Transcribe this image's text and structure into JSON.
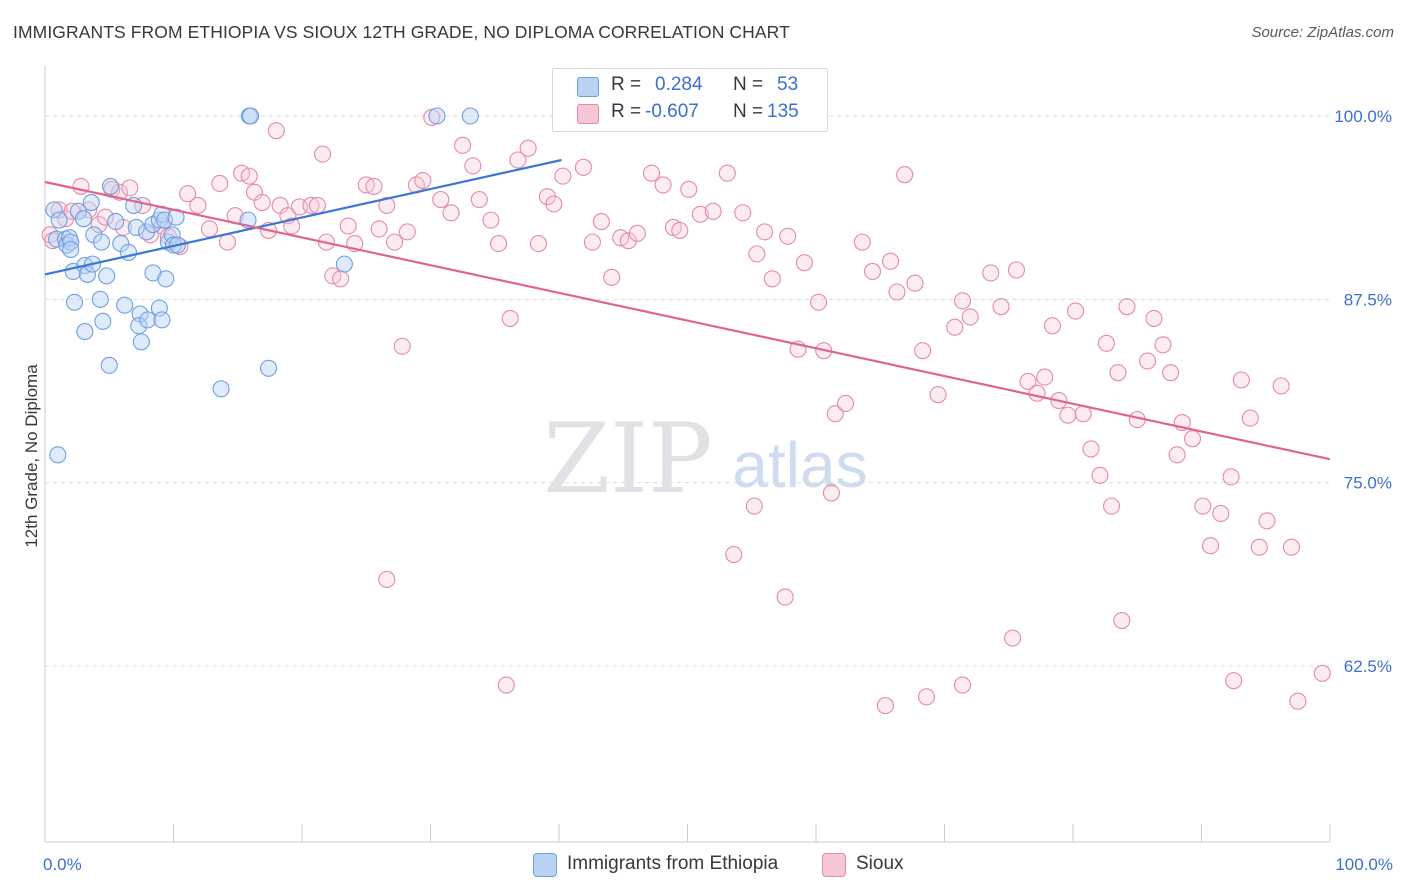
{
  "title": "IMMIGRANTS FROM ETHIOPIA VS SIOUX 12TH GRADE, NO DIPLOMA CORRELATION CHART",
  "source": "Source: ZipAtlas.com",
  "watermark": {
    "zip": "ZIP",
    "atlas": "atlas"
  },
  "legend": {
    "r_label": "R =",
    "n_label": "N =",
    "series": [
      {
        "name": "Immigrants from Ethiopia",
        "r": "0.284",
        "n": "53",
        "color": "#6f9fe0",
        "fill": "#b8d2f4"
      },
      {
        "name": "Sioux",
        "r": "-0.607",
        "n": "135",
        "color": "#e58aa8",
        "fill": "#f7c6d6"
      }
    ]
  },
  "chart_data": {
    "type": "scatter",
    "title": "IMMIGRANTS FROM ETHIOPIA VS SIOUX 12TH GRADE, NO DIPLOMA CORRELATION CHART",
    "xlabel": "",
    "ylabel": "12th Grade, No Diploma",
    "xlim": [
      0,
      100
    ],
    "ylim": [
      50.5,
      103
    ],
    "x_tick_labels": [
      "0.0%",
      "100.0%"
    ],
    "y_ticks": [
      100,
      87.5,
      75,
      62.5
    ],
    "y_tick_labels": [
      "100.0%",
      "87.5%",
      "75.0%",
      "62.5%"
    ],
    "grid": true,
    "series": [
      {
        "name": "Immigrants from Ethiopia",
        "color": "#6f9fe0",
        "trend": {
          "x": [
            0,
            40.2
          ],
          "y": [
            89.2,
            97.0
          ]
        },
        "points": [
          [
            0.7,
            93.6
          ],
          [
            0.9,
            91.6
          ],
          [
            1.1,
            92.9
          ],
          [
            1.6,
            91.6
          ],
          [
            1.7,
            91.2
          ],
          [
            1.9,
            91.7
          ],
          [
            2.0,
            91.4
          ],
          [
            2.2,
            89.4
          ],
          [
            2.6,
            93.5
          ],
          [
            3.0,
            93.0
          ],
          [
            3.1,
            89.8
          ],
          [
            3.3,
            89.2
          ],
          [
            3.6,
            94.1
          ],
          [
            3.8,
            91.9
          ],
          [
            4.4,
            91.4
          ],
          [
            4.8,
            89.1
          ],
          [
            4.3,
            87.5
          ],
          [
            5.1,
            95.2
          ],
          [
            5.5,
            92.8
          ],
          [
            5.9,
            91.3
          ],
          [
            6.5,
            90.7
          ],
          [
            6.9,
            93.9
          ],
          [
            7.1,
            92.4
          ],
          [
            7.4,
            86.5
          ],
          [
            7.9,
            92.1
          ],
          [
            8.4,
            89.3
          ],
          [
            8.4,
            92.6
          ],
          [
            8.9,
            92.9
          ],
          [
            9.1,
            93.3
          ],
          [
            9.3,
            92.9
          ],
          [
            9.4,
            88.9
          ],
          [
            9.6,
            91.4
          ],
          [
            9.9,
            91.9
          ],
          [
            10.0,
            91.2
          ],
          [
            2.3,
            87.3
          ],
          [
            3.1,
            85.3
          ],
          [
            3.7,
            89.9
          ],
          [
            4.5,
            86.0
          ],
          [
            5.0,
            83.0
          ],
          [
            6.2,
            87.1
          ],
          [
            7.3,
            85.7
          ],
          [
            7.5,
            84.6
          ],
          [
            8.0,
            86.1
          ],
          [
            8.9,
            86.9
          ],
          [
            9.1,
            86.1
          ],
          [
            10.3,
            91.2
          ],
          [
            13.7,
            81.4
          ],
          [
            15.8,
            92.9
          ],
          [
            15.9,
            100.0
          ],
          [
            16.0,
            100.0
          ],
          [
            17.4,
            82.8
          ],
          [
            23.3,
            89.9
          ],
          [
            30.5,
            100.0
          ],
          [
            33.1,
            100.0
          ],
          [
            1.0,
            76.9
          ],
          [
            10.2,
            93.1
          ],
          [
            2.0,
            90.9
          ]
        ]
      },
      {
        "name": "Sioux",
        "color": "#e58aa8",
        "trend": {
          "x": [
            0,
            100
          ],
          "y": [
            95.5,
            76.6
          ]
        },
        "points": [
          [
            0.4,
            91.9
          ],
          [
            0.6,
            91.5
          ],
          [
            1.1,
            93.6
          ],
          [
            1.6,
            93.0
          ],
          [
            2.1,
            93.5
          ],
          [
            2.8,
            95.2
          ],
          [
            3.4,
            93.6
          ],
          [
            4.2,
            92.6
          ],
          [
            4.7,
            93.1
          ],
          [
            5.2,
            95.0
          ],
          [
            5.8,
            94.8
          ],
          [
            6.1,
            92.4
          ],
          [
            6.6,
            95.1
          ],
          [
            7.6,
            93.9
          ],
          [
            8.2,
            91.9
          ],
          [
            9.1,
            92.5
          ],
          [
            9.6,
            91.8
          ],
          [
            10.5,
            91.1
          ],
          [
            11.1,
            94.7
          ],
          [
            11.9,
            93.9
          ],
          [
            12.8,
            92.3
          ],
          [
            13.6,
            95.4
          ],
          [
            14.2,
            91.4
          ],
          [
            14.8,
            93.2
          ],
          [
            15.3,
            96.1
          ],
          [
            15.9,
            95.9
          ],
          [
            16.3,
            94.8
          ],
          [
            16.9,
            94.1
          ],
          [
            17.4,
            92.2
          ],
          [
            18.0,
            99.0
          ],
          [
            18.3,
            93.9
          ],
          [
            18.9,
            93.2
          ],
          [
            19.2,
            92.5
          ],
          [
            19.8,
            93.8
          ],
          [
            20.7,
            93.9
          ],
          [
            21.2,
            93.9
          ],
          [
            21.6,
            97.4
          ],
          [
            21.9,
            91.4
          ],
          [
            22.4,
            89.1
          ],
          [
            23.0,
            88.9
          ],
          [
            23.6,
            92.5
          ],
          [
            24.1,
            91.3
          ],
          [
            25.0,
            95.3
          ],
          [
            25.6,
            95.2
          ],
          [
            26.0,
            92.3
          ],
          [
            26.6,
            93.9
          ],
          [
            27.2,
            91.4
          ],
          [
            27.8,
            84.3
          ],
          [
            28.2,
            92.1
          ],
          [
            28.9,
            95.3
          ],
          [
            29.4,
            95.6
          ],
          [
            30.1,
            99.9
          ],
          [
            30.8,
            94.3
          ],
          [
            31.6,
            93.4
          ],
          [
            32.5,
            98.0
          ],
          [
            33.3,
            96.6
          ],
          [
            33.8,
            94.3
          ],
          [
            34.7,
            92.9
          ],
          [
            35.3,
            91.3
          ],
          [
            36.2,
            86.2
          ],
          [
            36.8,
            97.0
          ],
          [
            37.6,
            97.8
          ],
          [
            38.4,
            91.3
          ],
          [
            39.1,
            94.5
          ],
          [
            39.6,
            94.0
          ],
          [
            40.3,
            95.9
          ],
          [
            41.0,
            100.0
          ],
          [
            41.9,
            96.5
          ],
          [
            42.6,
            91.4
          ],
          [
            43.3,
            92.8
          ],
          [
            44.1,
            89.0
          ],
          [
            44.8,
            91.7
          ],
          [
            45.4,
            91.5
          ],
          [
            46.1,
            92.0
          ],
          [
            46.8,
            99.8
          ],
          [
            47.2,
            96.1
          ],
          [
            48.1,
            95.3
          ],
          [
            48.9,
            92.4
          ],
          [
            49.4,
            92.2
          ],
          [
            50.1,
            95.0
          ],
          [
            51.0,
            93.3
          ],
          [
            52.0,
            93.5
          ],
          [
            53.1,
            96.1
          ],
          [
            54.3,
            93.4
          ],
          [
            55.4,
            90.6
          ],
          [
            56.0,
            92.1
          ],
          [
            56.6,
            88.9
          ],
          [
            57.8,
            91.8
          ],
          [
            58.6,
            84.1
          ],
          [
            59.1,
            90.0
          ],
          [
            60.2,
            87.3
          ],
          [
            60.6,
            84.0
          ],
          [
            61.5,
            79.7
          ],
          [
            62.3,
            80.4
          ],
          [
            63.6,
            91.4
          ],
          [
            64.4,
            89.4
          ],
          [
            65.8,
            90.1
          ],
          [
            66.3,
            88.0
          ],
          [
            66.9,
            96.0
          ],
          [
            67.7,
            88.6
          ],
          [
            68.3,
            84.0
          ],
          [
            69.5,
            81.0
          ],
          [
            70.8,
            85.6
          ],
          [
            71.4,
            87.4
          ],
          [
            72.0,
            86.3
          ],
          [
            73.6,
            89.3
          ],
          [
            74.4,
            87.0
          ],
          [
            75.6,
            89.5
          ],
          [
            76.5,
            81.9
          ],
          [
            77.2,
            81.1
          ],
          [
            77.8,
            82.2
          ],
          [
            78.4,
            85.7
          ],
          [
            78.9,
            80.6
          ],
          [
            79.6,
            79.6
          ],
          [
            80.2,
            86.7
          ],
          [
            80.8,
            79.7
          ],
          [
            81.4,
            77.3
          ],
          [
            82.1,
            75.5
          ],
          [
            82.6,
            84.5
          ],
          [
            83.5,
            82.5
          ],
          [
            84.2,
            87.0
          ],
          [
            85.0,
            79.3
          ],
          [
            85.8,
            83.3
          ],
          [
            86.3,
            86.2
          ],
          [
            87.0,
            84.4
          ],
          [
            87.6,
            82.5
          ],
          [
            88.1,
            76.9
          ],
          [
            88.5,
            79.1
          ],
          [
            89.3,
            78.0
          ],
          [
            90.1,
            73.4
          ],
          [
            90.7,
            70.7
          ],
          [
            91.5,
            72.9
          ],
          [
            92.3,
            75.4
          ],
          [
            93.1,
            82.0
          ],
          [
            93.8,
            79.4
          ],
          [
            94.5,
            70.6
          ],
          [
            95.1,
            72.4
          ],
          [
            96.2,
            81.6
          ],
          [
            97.0,
            70.6
          ],
          [
            26.6,
            68.4
          ],
          [
            35.9,
            61.2
          ],
          [
            53.6,
            70.1
          ],
          [
            55.2,
            73.4
          ],
          [
            57.6,
            67.2
          ],
          [
            61.2,
            74.3
          ],
          [
            65.4,
            59.8
          ],
          [
            68.6,
            60.4
          ],
          [
            71.4,
            61.2
          ],
          [
            75.3,
            64.4
          ],
          [
            83.0,
            73.4
          ],
          [
            92.5,
            61.5
          ],
          [
            99.4,
            62.0
          ],
          [
            97.5,
            60.1
          ],
          [
            83.8,
            65.6
          ]
        ]
      }
    ]
  }
}
